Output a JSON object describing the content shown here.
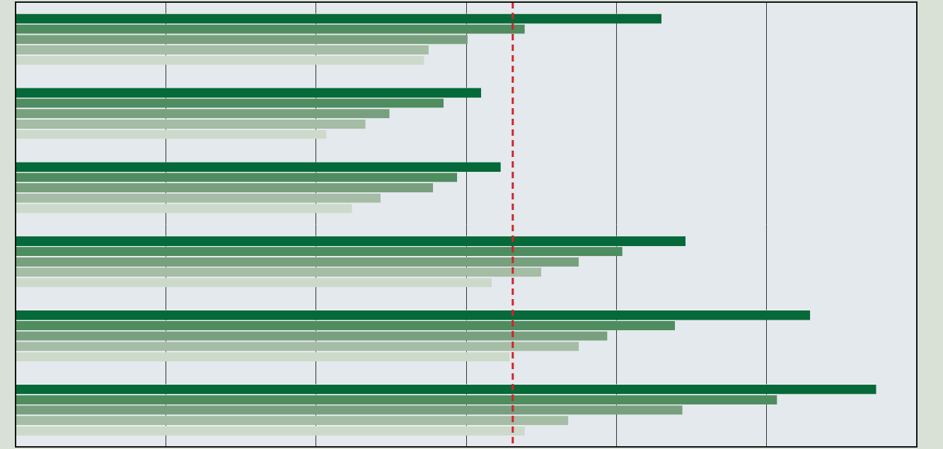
{
  "chart_data": {
    "type": "bar",
    "orientation": "horizontal",
    "categories": [
      null,
      null,
      null,
      null,
      null,
      null
    ],
    "series": [
      {
        "color": "#05693a",
        "values": [
          4.3,
          3.1,
          3.23,
          4.46,
          5.29,
          5.73
        ]
      },
      {
        "color": "#4f8c5f",
        "values": [
          3.39,
          2.85,
          2.94,
          4.04,
          4.39,
          5.07
        ]
      },
      {
        "color": "#78a07f",
        "values": [
          3.01,
          2.49,
          2.78,
          3.75,
          3.94,
          4.44
        ]
      },
      {
        "color": "#a5bca5",
        "values": [
          2.75,
          2.33,
          2.43,
          3.5,
          3.75,
          3.68
        ]
      },
      {
        "color": "#cdd9ca",
        "values": [
          2.72,
          2.07,
          2.24,
          3.17,
          3.29,
          3.39
        ]
      }
    ],
    "xlim": [
      0,
      6
    ],
    "xticks": [
      0,
      1,
      2,
      3,
      4,
      5,
      6
    ],
    "grid": true,
    "tick_labels": false,
    "reference_line": {
      "value": 3.31,
      "color": "#d2232a",
      "line_style": "dashed"
    }
  }
}
